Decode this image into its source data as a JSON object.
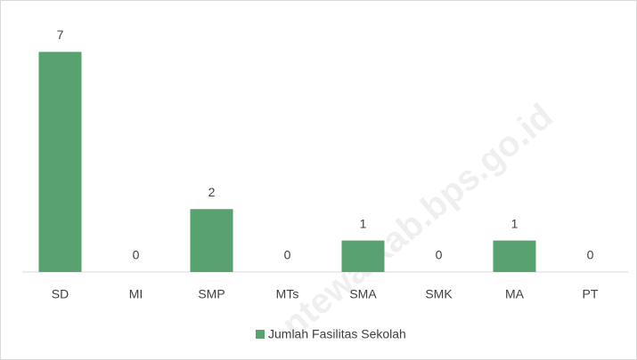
{
  "chart_data": {
    "type": "bar",
    "categories": [
      "SD",
      "MI",
      "SMP",
      "MTs",
      "SMA",
      "SMK",
      "MA",
      "PT"
    ],
    "series": [
      {
        "name": "Jumlah Fasilitas Sekolah",
        "color": "#58a26f",
        "values": [
          7,
          0,
          2,
          0,
          1,
          0,
          1,
          0
        ]
      }
    ],
    "ylim": [
      0,
      8
    ],
    "legend": "bottom",
    "watermark": "ntewalkab.bps.go.id"
  }
}
